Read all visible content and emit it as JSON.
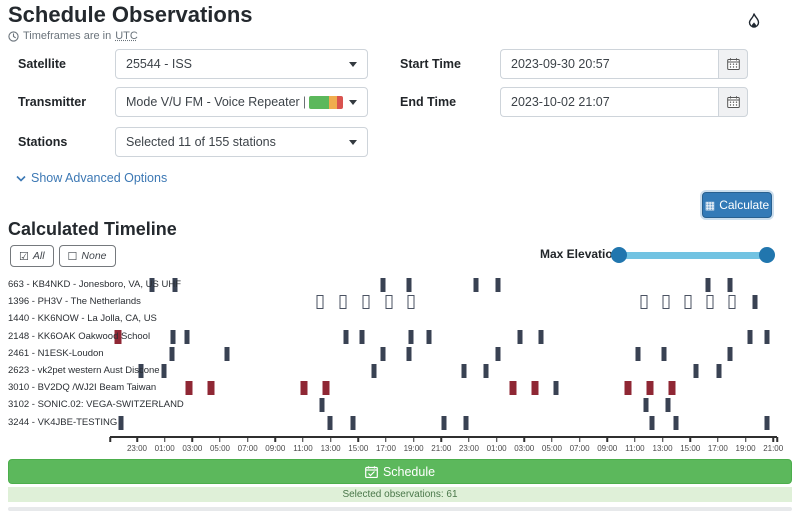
{
  "header": {
    "title": "Schedule Observations",
    "timezone_note_prefix": "Timeframes are in ",
    "timezone_note_unit": "UTC"
  },
  "form": {
    "satellite": {
      "label": "Satellite",
      "value": "25544 - ISS"
    },
    "transmitter": {
      "label": "Transmitter",
      "value": "Mode V/U FM - Voice Repeater | 437...."
    },
    "stations": {
      "label": "Stations",
      "value": "Selected 11 of 155 stations"
    },
    "start_time": {
      "label": "Start Time",
      "value": "2023-09-30 20:57"
    },
    "end_time": {
      "label": "End Time",
      "value": "2023-10-02 21:07"
    },
    "advanced_toggle_label": "Show Advanced Options",
    "calculate_label": "Calculate"
  },
  "timeline_section": {
    "title": "Calculated Timeline",
    "all_label": "All",
    "none_label": "None",
    "max_elevation_label": "Max Elevation"
  },
  "footer": {
    "schedule_label": "Schedule",
    "selected_note": "Selected observations: 61"
  },
  "colors": {
    "accent_blue": "#337ab7",
    "link_blue": "#3c78b4",
    "green": "#5cb85c",
    "info_green_bg": "#dff0d8",
    "slider_track": "#72c3e2",
    "slider_handle": "#2176ae",
    "bar_solid": "#394253",
    "bar_red": "#8f2734",
    "badge_green": "#5cb85c",
    "badge_orange": "#f0ad4e",
    "badge_red": "#d9534f"
  },
  "chart_data": {
    "type": "timeline",
    "title": "Calculated Timeline",
    "x_start": "2023-09-30 20:57",
    "x_end": "2023-10-02 21:07",
    "axis_ticks": [
      "23:00",
      "01:00",
      "03:00",
      "05:00",
      "07:00",
      "09:00",
      "11:00",
      "13:00",
      "15:00",
      "17:00",
      "19:00",
      "21:00",
      "23:00",
      "01:00",
      "03:00",
      "05:00",
      "07:00",
      "09:00",
      "11:00",
      "13:00",
      "15:00",
      "17:00",
      "19:00",
      "21:00"
    ],
    "bar_styles": {
      "solid": "selected pass",
      "open": "unselected pass",
      "red": "conflict pass"
    },
    "rows": [
      {
        "label": "663 - KB4NKD - Jonesboro, VA, US UHF",
        "bars": [
          {
            "p": 6.3,
            "s": "solid"
          },
          {
            "p": 9.7,
            "s": "solid"
          },
          {
            "p": 41.0,
            "s": "solid"
          },
          {
            "p": 44.8,
            "s": "solid"
          },
          {
            "p": 54.8,
            "s": "solid"
          },
          {
            "p": 58.1,
            "s": "solid"
          },
          {
            "p": 89.6,
            "s": "solid"
          },
          {
            "p": 93.0,
            "s": "solid"
          }
        ]
      },
      {
        "label": "1396 - PH3V - The Netherlands",
        "bars": [
          {
            "p": 31.5,
            "s": "open"
          },
          {
            "p": 34.9,
            "s": "open"
          },
          {
            "p": 38.4,
            "s": "open"
          },
          {
            "p": 41.8,
            "s": "open"
          },
          {
            "p": 45.1,
            "s": "open"
          },
          {
            "p": 80.1,
            "s": "open"
          },
          {
            "p": 83.4,
            "s": "open"
          },
          {
            "p": 86.7,
            "s": "open"
          },
          {
            "p": 90.0,
            "s": "open"
          },
          {
            "p": 93.3,
            "s": "open"
          },
          {
            "p": 96.7,
            "s": "solid"
          }
        ]
      },
      {
        "label": "1440 - KK6NOW - La Jolla, CA, US",
        "bars": []
      },
      {
        "label": "2148 - KK6OAK Oakwood School",
        "bars": [
          {
            "p": 1.2,
            "s": "red"
          },
          {
            "p": 9.4,
            "s": "solid"
          },
          {
            "p": 11.5,
            "s": "solid"
          },
          {
            "p": 35.4,
            "s": "solid"
          },
          {
            "p": 37.8,
            "s": "solid"
          },
          {
            "p": 45.2,
            "s": "solid"
          },
          {
            "p": 47.8,
            "s": "solid"
          },
          {
            "p": 61.5,
            "s": "solid"
          },
          {
            "p": 64.6,
            "s": "solid"
          },
          {
            "p": 96.0,
            "s": "solid"
          },
          {
            "p": 98.5,
            "s": "solid"
          }
        ]
      },
      {
        "label": "2461 - N1ESK-Loudon",
        "bars": [
          {
            "p": 9.3,
            "s": "solid"
          },
          {
            "p": 17.5,
            "s": "solid"
          },
          {
            "p": 41.0,
            "s": "solid"
          },
          {
            "p": 44.8,
            "s": "solid"
          },
          {
            "p": 58.2,
            "s": "solid"
          },
          {
            "p": 79.1,
            "s": "solid"
          },
          {
            "p": 83.1,
            "s": "solid"
          },
          {
            "p": 93.0,
            "s": "solid"
          }
        ]
      },
      {
        "label": "2623 - vk2pet western Aust Discone",
        "bars": [
          {
            "p": 4.6,
            "s": "solid"
          },
          {
            "p": 8.1,
            "s": "solid"
          },
          {
            "p": 39.6,
            "s": "solid"
          },
          {
            "p": 53.0,
            "s": "solid"
          },
          {
            "p": 56.4,
            "s": "solid"
          },
          {
            "p": 87.8,
            "s": "solid"
          },
          {
            "p": 91.3,
            "s": "solid"
          }
        ]
      },
      {
        "label": "3010 - BV2DQ /WJ2I Beam Taiwan",
        "bars": [
          {
            "p": 11.9,
            "s": "red"
          },
          {
            "p": 15.2,
            "s": "red"
          },
          {
            "p": 29.1,
            "s": "red"
          },
          {
            "p": 32.4,
            "s": "red"
          },
          {
            "p": 60.4,
            "s": "red"
          },
          {
            "p": 63.7,
            "s": "red"
          },
          {
            "p": 66.9,
            "s": "solid"
          },
          {
            "p": 77.6,
            "s": "red"
          },
          {
            "p": 80.9,
            "s": "red"
          },
          {
            "p": 84.3,
            "s": "red"
          }
        ]
      },
      {
        "label": "3102 - SONIC.02: VEGA-SWITZERLAND",
        "bars": [
          {
            "p": 31.8,
            "s": "solid"
          },
          {
            "p": 80.3,
            "s": "solid"
          },
          {
            "p": 83.6,
            "s": "solid"
          }
        ]
      },
      {
        "label": "3244 - VK4JBE-TESTING",
        "bars": [
          {
            "p": 1.6,
            "s": "solid"
          },
          {
            "p": 33.0,
            "s": "solid"
          },
          {
            "p": 36.4,
            "s": "solid"
          },
          {
            "p": 50.0,
            "s": "solid"
          },
          {
            "p": 53.4,
            "s": "solid"
          },
          {
            "p": 81.3,
            "s": "solid"
          },
          {
            "p": 84.8,
            "s": "solid"
          },
          {
            "p": 98.5,
            "s": "solid"
          }
        ]
      }
    ]
  }
}
